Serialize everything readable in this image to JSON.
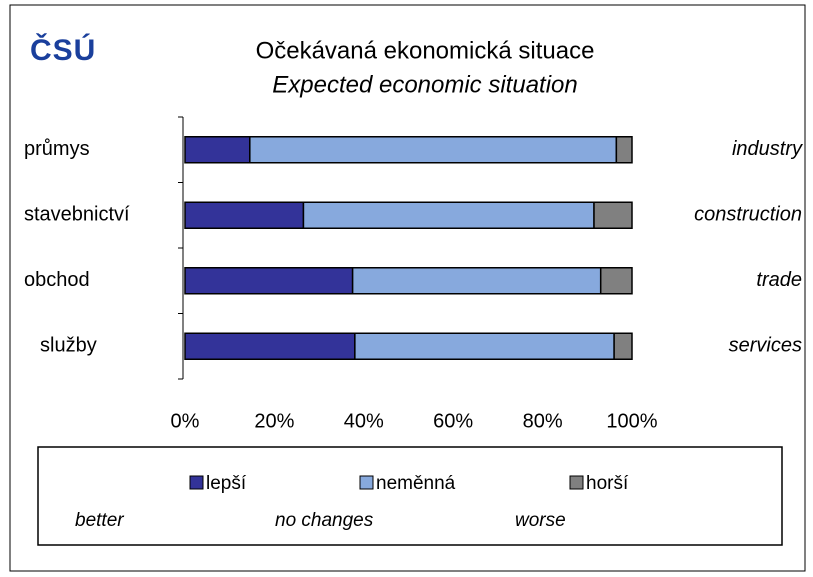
{
  "chart_data": {
    "type": "stacked_bar_horizontal",
    "logo": "ČSÚ",
    "title": "Očekávaná ekonomická situace",
    "subtitle": "Expected economic situation",
    "categories": [
      "průmys",
      "stavebnictví",
      "obchod",
      "služby"
    ],
    "categories_en": [
      "industry",
      "construction",
      "trade",
      "services"
    ],
    "series": [
      {
        "name": "lepší",
        "name_en": "better",
        "color": "#333399",
        "values": [
          14.5,
          26.5,
          37.5,
          38
        ]
      },
      {
        "name": "neměnná",
        "name_en": "no changes",
        "color": "#87a9dd",
        "values": [
          82,
          65,
          55.5,
          58
        ]
      },
      {
        "name": "horší",
        "name_en": "worse",
        "color": "#808080",
        "values": [
          3.5,
          8.5,
          7,
          4
        ]
      }
    ],
    "xlim": [
      0,
      100
    ],
    "xticks": [
      {
        "value": 0,
        "label": "0%"
      },
      {
        "value": 20,
        "label": "20%"
      },
      {
        "value": 40,
        "label": "40%"
      },
      {
        "value": 60,
        "label": "60%"
      },
      {
        "value": 80,
        "label": "80%"
      },
      {
        "value": 100,
        "label": "100%"
      }
    ]
  }
}
